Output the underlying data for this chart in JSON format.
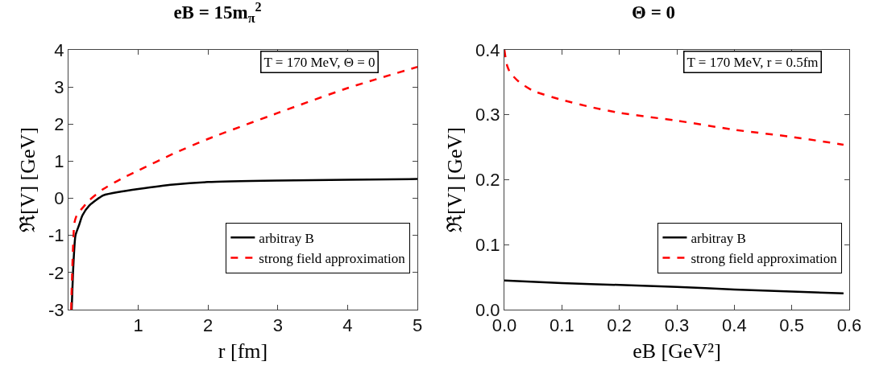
{
  "chart_data": [
    {
      "type": "line",
      "title": "eB = 15m$_{π}$$^{2}$",
      "xlabel": "r [fm]",
      "ylabel": "ℜ[V] [GeV]",
      "annotations": [
        "T = 170 MeV, Θ = 0"
      ],
      "xlim": [
        0,
        5
      ],
      "xticks": [
        1,
        2,
        3,
        4,
        5
      ],
      "ylim": [
        -3,
        4
      ],
      "yticks": [
        -3,
        -2,
        -1,
        0,
        1,
        2,
        3,
        4
      ],
      "grid": false,
      "legend": "bottom right",
      "marker": "none",
      "series": [
        {
          "name": "arbitray B",
          "color": "#000000",
          "line_style": "solid",
          "x": [
            0.046,
            0.07,
            0.1,
            0.15,
            0.2,
            0.3,
            0.5,
            0.75,
            1,
            1.5,
            2,
            3,
            4,
            5
          ],
          "values": [
            -3,
            -1.8,
            -1,
            -0.73,
            -0.46,
            -0.19,
            0.08,
            0.18,
            0.25,
            0.37,
            0.44,
            0.48,
            0.5,
            0.52
          ]
        },
        {
          "name": "strong field approximation",
          "color": "#ff0000",
          "line_style": "dashed",
          "x": [
            0.038,
            0.06,
            0.085,
            0.12,
            0.2,
            0.3,
            0.5,
            0.75,
            1,
            1.5,
            2,
            3,
            4,
            5
          ],
          "values": [
            -3,
            -1.6,
            -0.66,
            -0.45,
            -0.26,
            -0.05,
            0.25,
            0.52,
            0.75,
            1.2,
            1.6,
            2.3,
            2.97,
            3.54
          ]
        }
      ]
    },
    {
      "type": "line",
      "title": "Θ = 0",
      "xlabel": "eB [GeV²]",
      "ylabel": "ℜ[V] [GeV]",
      "annotations": [
        "T = 170 MeV, r = 0.5fm"
      ],
      "xlim": [
        0,
        0.6
      ],
      "xticks": [
        {
          "value": 0,
          "label": "0.0"
        },
        0.1,
        0.2,
        0.3,
        0.4,
        0.5,
        0.6
      ],
      "ylim": [
        0,
        0.4
      ],
      "yticks": [
        {
          "value": 0,
          "label": "0.0"
        },
        0.1,
        0.2,
        0.3,
        0.4
      ],
      "grid": false,
      "legend": "bottom right",
      "marker": "none",
      "series": [
        {
          "name": "arbitray B",
          "color": "#000000",
          "line_style": "solid",
          "x": [
            0,
            0.1,
            0.2,
            0.3,
            0.4,
            0.5,
            0.59
          ],
          "values": [
            0.045,
            0.041,
            0.038,
            0.035,
            0.031,
            0.028,
            0.025
          ]
        },
        {
          "name": "strong field approximation",
          "color": "#ff0000",
          "line_style": "dashed",
          "x": [
            0,
            0.002,
            0.005,
            0.01,
            0.025,
            0.05,
            0.1,
            0.15,
            0.2,
            0.3,
            0.4,
            0.5,
            0.59
          ],
          "values": [
            0.4,
            0.388,
            0.375,
            0.365,
            0.351,
            0.337,
            0.323,
            0.312,
            0.303,
            0.291,
            0.277,
            0.266,
            0.254
          ]
        }
      ]
    }
  ]
}
